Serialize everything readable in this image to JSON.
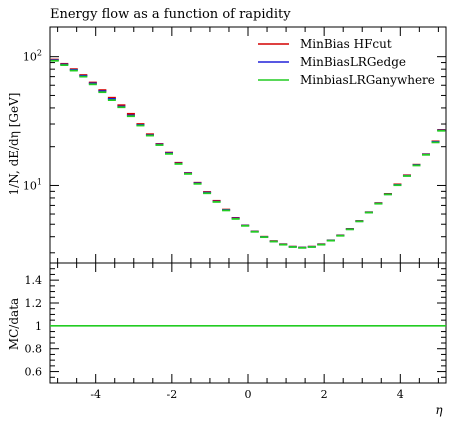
{
  "chart_data": [
    {
      "type": "line",
      "title": "Energy flow as a function of rapidity",
      "ylabel": "1/N, dE/dη [GeV]",
      "xlabel": "",
      "yscale": "log",
      "xlim": [
        -5.2,
        5.2
      ],
      "ylim": [
        2.5,
        170
      ],
      "yticks": [
        10,
        100
      ],
      "ytick_labels": [
        "10^1",
        "10^2"
      ],
      "legend_position": "top-right",
      "grid": false,
      "x": [
        -5.075,
        -4.825,
        -4.575,
        -4.325,
        -4.075,
        -3.825,
        -3.575,
        -3.325,
        -3.075,
        -2.825,
        -2.575,
        -2.325,
        -2.075,
        -1.825,
        -1.575,
        -1.325,
        -1.075,
        -0.825,
        -0.575,
        -0.325,
        -0.075,
        0.175,
        0.425,
        0.675,
        0.925,
        1.175,
        1.425,
        1.675,
        1.925,
        2.175,
        2.425,
        2.675,
        2.925,
        3.175,
        3.425,
        3.675,
        3.925,
        4.175,
        4.425,
        4.675,
        4.925,
        5.075
      ],
      "series": [
        {
          "name": "MinBias HFcut",
          "color": "#d40000",
          "values": [
            95,
            88,
            80,
            72,
            63,
            55,
            48,
            42,
            36,
            30,
            25,
            21,
            18,
            15,
            12.5,
            10.5,
            8.9,
            7.6,
            6.5,
            5.6,
            4.9,
            4.4,
            4.0,
            3.7,
            3.5,
            3.35,
            3.3,
            3.35,
            3.5,
            3.75,
            4.1,
            4.6,
            5.3,
            6.2,
            7.3,
            8.6,
            10.2,
            12.0,
            14.5,
            17.5,
            22.0,
            27.0
          ]
        },
        {
          "name": "MinBiasLRGedge",
          "color": "#2020d8",
          "values": [
            94,
            87,
            79,
            71,
            62,
            54,
            47,
            41,
            35,
            29.5,
            24.6,
            20.8,
            17.8,
            14.8,
            12.4,
            10.4,
            8.8,
            7.5,
            6.45,
            5.55,
            4.88,
            4.38,
            3.98,
            3.68,
            3.48,
            3.34,
            3.29,
            3.34,
            3.48,
            3.74,
            4.08,
            4.58,
            5.28,
            6.18,
            7.25,
            8.55,
            10.1,
            11.9,
            14.4,
            17.4,
            21.8,
            26.8
          ]
        },
        {
          "name": "MinbiasLRGanywhere",
          "color": "#22cc22",
          "values": [
            93,
            86,
            78,
            70,
            61,
            53,
            46,
            40.5,
            34.5,
            29.2,
            24.4,
            20.6,
            17.6,
            14.7,
            12.3,
            10.3,
            8.7,
            7.45,
            6.4,
            5.5,
            4.86,
            4.37,
            3.97,
            3.67,
            3.47,
            3.33,
            3.28,
            3.33,
            3.47,
            3.73,
            4.07,
            4.56,
            5.26,
            6.16,
            7.22,
            8.52,
            10.05,
            11.85,
            14.3,
            17.3,
            21.6,
            26.6
          ]
        }
      ]
    },
    {
      "type": "line",
      "title": "",
      "xlabel": "η",
      "ylabel": "MC/data",
      "xlim": [
        -5.2,
        5.2
      ],
      "ylim": [
        0.5,
        1.55
      ],
      "xticks": [
        -4,
        -2,
        0,
        2,
        4
      ],
      "xtick_labels": [
        "-4",
        "-2",
        "0",
        "2",
        "4"
      ],
      "yticks": [
        0.6,
        0.8,
        1.0,
        1.2,
        1.4
      ],
      "ytick_labels": [
        "0.6",
        "0.8",
        "1",
        "1.2",
        "1.4"
      ],
      "grid": false,
      "series": [
        {
          "name": "MinBias HFcut",
          "color": "#d40000",
          "values": [
            1.0,
            1.0
          ]
        },
        {
          "name": "MinBiasLRGedge",
          "color": "#2020d8",
          "values": [
            1.0,
            1.0
          ]
        },
        {
          "name": "MinbiasLRGanywhere",
          "color": "#22cc22",
          "values": [
            1.0,
            1.0
          ]
        }
      ]
    }
  ]
}
